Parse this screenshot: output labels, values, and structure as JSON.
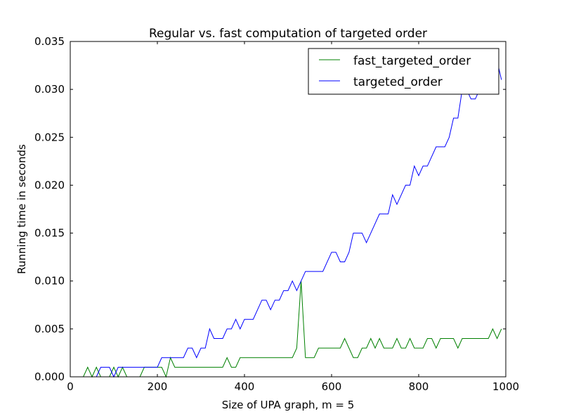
{
  "chart_data": {
    "type": "line",
    "title": "Regular vs. fast computation of targeted order",
    "xlabel": "Size of UPA graph, m = 5",
    "ylabel": "Running time in seconds",
    "xlim": [
      0,
      1000
    ],
    "ylim": [
      0,
      0.035
    ],
    "xticks": [
      0,
      200,
      400,
      600,
      800,
      1000
    ],
    "xtick_labels": [
      "0",
      "200",
      "400",
      "600",
      "800",
      "1000"
    ],
    "yticks": [
      0,
      0.005,
      0.01,
      0.015,
      0.02,
      0.025,
      0.03,
      0.035
    ],
    "ytick_labels": [
      "0.000",
      "0.005",
      "0.010",
      "0.015",
      "0.020",
      "0.025",
      "0.030",
      "0.035"
    ],
    "grid": false,
    "legend_position": "top-right",
    "x": [
      10,
      20,
      30,
      40,
      50,
      60,
      70,
      80,
      90,
      100,
      110,
      120,
      130,
      140,
      150,
      160,
      170,
      180,
      190,
      200,
      210,
      220,
      230,
      240,
      250,
      260,
      270,
      280,
      290,
      300,
      310,
      320,
      330,
      340,
      350,
      360,
      370,
      380,
      390,
      400,
      410,
      420,
      430,
      440,
      450,
      460,
      470,
      480,
      490,
      500,
      510,
      520,
      530,
      540,
      550,
      560,
      570,
      580,
      590,
      600,
      610,
      620,
      630,
      640,
      650,
      660,
      670,
      680,
      690,
      700,
      710,
      720,
      730,
      740,
      750,
      760,
      770,
      780,
      790,
      800,
      810,
      820,
      830,
      840,
      850,
      860,
      870,
      880,
      890,
      900,
      910,
      920,
      930,
      940,
      950,
      960,
      970,
      980,
      990
    ],
    "series": [
      {
        "name": "fast_targeted_order",
        "color": "#008000",
        "values": [
          0,
          0,
          0,
          0.001,
          0,
          0.001,
          0,
          0,
          0,
          0.001,
          0,
          0.001,
          0,
          0,
          0,
          0,
          0.001,
          0.001,
          0.001,
          0.001,
          0.001,
          0,
          0.002,
          0.001,
          0.001,
          0.001,
          0.001,
          0.001,
          0.001,
          0.001,
          0.001,
          0.001,
          0.001,
          0.001,
          0.001,
          0.002,
          0.001,
          0.001,
          0.002,
          0.002,
          0.002,
          0.002,
          0.002,
          0.002,
          0.002,
          0.002,
          0.002,
          0.002,
          0.002,
          0.002,
          0.002,
          0.003,
          0.01,
          0.002,
          0.002,
          0.002,
          0.003,
          0.003,
          0.003,
          0.003,
          0.003,
          0.003,
          0.004,
          0.003,
          0.002,
          0.002,
          0.003,
          0.003,
          0.004,
          0.003,
          0.004,
          0.003,
          0.003,
          0.003,
          0.004,
          0.003,
          0.003,
          0.004,
          0.003,
          0.003,
          0.003,
          0.004,
          0.004,
          0.003,
          0.004,
          0.004,
          0.004,
          0.004,
          0.003,
          0.004,
          0.004,
          0.004,
          0.004,
          0.004,
          0.004,
          0.004,
          0.005,
          0.004,
          0.005
        ]
      },
      {
        "name": "targeted_order",
        "color": "#0000ff",
        "values": [
          0,
          0,
          0,
          0,
          0,
          0,
          0.001,
          0.001,
          0.001,
          0,
          0.001,
          0.001,
          0.001,
          0.001,
          0.001,
          0.001,
          0.001,
          0.001,
          0.001,
          0.001,
          0.002,
          0.002,
          0.002,
          0.002,
          0.002,
          0.002,
          0.003,
          0.003,
          0.002,
          0.003,
          0.003,
          0.005,
          0.004,
          0.004,
          0.004,
          0.005,
          0.005,
          0.006,
          0.005,
          0.006,
          0.006,
          0.006,
          0.007,
          0.008,
          0.008,
          0.007,
          0.008,
          0.008,
          0.009,
          0.009,
          0.01,
          0.009,
          0.01,
          0.011,
          0.011,
          0.011,
          0.011,
          0.011,
          0.012,
          0.013,
          0.013,
          0.012,
          0.012,
          0.013,
          0.015,
          0.015,
          0.015,
          0.014,
          0.015,
          0.016,
          0.017,
          0.017,
          0.017,
          0.019,
          0.018,
          0.019,
          0.02,
          0.02,
          0.022,
          0.021,
          0.022,
          0.022,
          0.023,
          0.024,
          0.024,
          0.024,
          0.025,
          0.027,
          0.027,
          0.03,
          0.03,
          0.029,
          0.029,
          0.03,
          0.03,
          0.031,
          0.031,
          0.033,
          0.031
        ]
      }
    ]
  }
}
